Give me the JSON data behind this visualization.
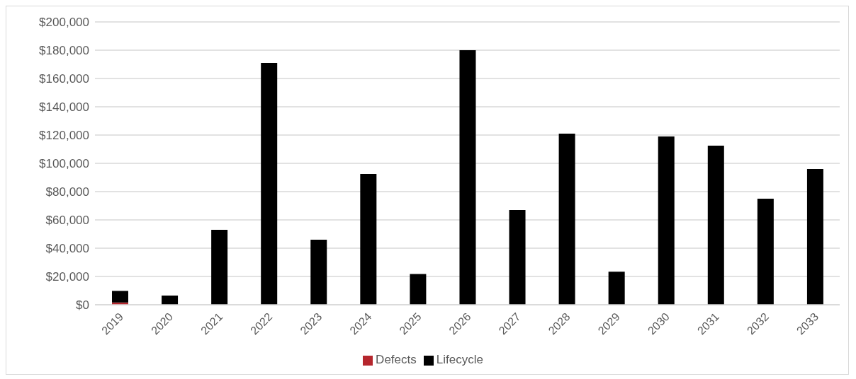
{
  "chart_data": {
    "type": "bar",
    "stacked": true,
    "categories": [
      "2019",
      "2020",
      "2021",
      "2022",
      "2023",
      "2024",
      "2025",
      "2026",
      "2027",
      "2028",
      "2029",
      "2030",
      "2031",
      "2032",
      "2033"
    ],
    "series": [
      {
        "name": "Defects",
        "color": "#b5262d",
        "values": [
          1600,
          0,
          0,
          0,
          0,
          0,
          0,
          0,
          0,
          0,
          0,
          0,
          0,
          0,
          0
        ]
      },
      {
        "name": "Lifecycle",
        "color": "#000000",
        "values": [
          8200,
          6500,
          53000,
          171000,
          46000,
          92500,
          21700,
          180000,
          67000,
          121000,
          23400,
          119000,
          112500,
          75000,
          96000
        ]
      }
    ],
    "ylim": [
      0,
      200000
    ],
    "yticks": [
      {
        "value": 0,
        "label": "$0"
      },
      {
        "value": 20000,
        "label": "$20,000"
      },
      {
        "value": 40000,
        "label": "$40,000"
      },
      {
        "value": 60000,
        "label": "$60,000"
      },
      {
        "value": 80000,
        "label": "$80,000"
      },
      {
        "value": 100000,
        "label": "$100,000"
      },
      {
        "value": 120000,
        "label": "$120,000"
      },
      {
        "value": 140000,
        "label": "$140,000"
      },
      {
        "value": 160000,
        "label": "$160,000"
      },
      {
        "value": 180000,
        "label": "$180,000"
      },
      {
        "value": 200000,
        "label": "$200,000"
      }
    ],
    "grid": "y",
    "legend": "bottom"
  }
}
